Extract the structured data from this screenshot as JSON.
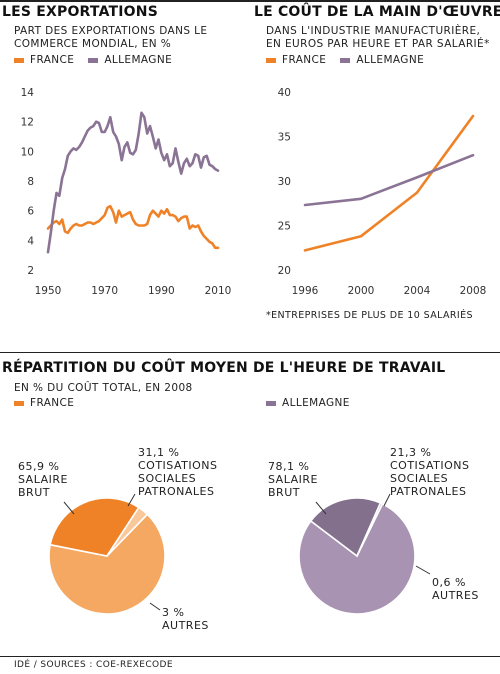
{
  "header_left": {
    "title": "LES EXPORTATIONS",
    "subtitle": "PART DES EXPORTATIONS DANS LE COMMERCE MONDIAL, EN %"
  },
  "header_right": {
    "title": "LE COÛT DE LA MAIN D'ŒUVRE",
    "subtitle": "DANS L'INDUSTRIE MANUFACTURIÈRE, EN EUROS PAR HEURE ET PAR SALARIÉ*"
  },
  "legend": {
    "france": "FRANCE",
    "allemagne": "ALLEMAGNE"
  },
  "colors": {
    "france": "#ef8227",
    "allemagne": "#8a7394",
    "france_light": "#f5a862",
    "allemagne_light": "#a893b2"
  },
  "footnote": "*ENTREPRISES DE PLUS DE 10 SALARIÉS",
  "section2": {
    "title": "RÉPARTITION DU COÛT MOYEN DE L'HEURE DE TRAVAIL",
    "subtitle": "EN % DU COÛT TOTAL, EN 2008"
  },
  "pie_labels": {
    "france": {
      "salaire_value": "65,9 %",
      "salaire_text": "SALAIRE BRUT",
      "cotis_value": "31,1 %",
      "cotis_text": "COTISATIONS SOCIALES PATRONALES",
      "autres_value": "3 %",
      "autres_text": "AUTRES"
    },
    "allemagne": {
      "salaire_value": "78,1 %",
      "salaire_text": "SALAIRE BRUT",
      "cotis_value": "21,3 %",
      "cotis_text": "COTISATIONS SOCIALES PATRONALES",
      "autres_value": "0,6 %",
      "autres_text": "AUTRES"
    }
  },
  "source": "IDÉ / SOURCES : COE-REXECODE",
  "chart_data": [
    {
      "type": "line",
      "title": "LES EXPORTATIONS",
      "subtitle": "PART DES EXPORTATIONS DANS LE COMMERCE MONDIAL, EN %",
      "xlim": [
        1950,
        2010
      ],
      "ylim": [
        2,
        14
      ],
      "xticks": [
        1950,
        1970,
        1990,
        2010
      ],
      "yticks": [
        2,
        4,
        6,
        8,
        10,
        12,
        14
      ],
      "series": [
        {
          "name": "FRANCE",
          "color": "#ef8227",
          "x": [
            1950,
            1951,
            1952,
            1953,
            1954,
            1955,
            1956,
            1957,
            1958,
            1959,
            1960,
            1961,
            1962,
            1963,
            1964,
            1965,
            1966,
            1967,
            1968,
            1969,
            1970,
            1971,
            1972,
            1973,
            1974,
            1975,
            1976,
            1977,
            1978,
            1979,
            1980,
            1981,
            1982,
            1983,
            1984,
            1985,
            1986,
            1987,
            1988,
            1989,
            1990,
            1991,
            1992,
            1993,
            1994,
            1995,
            1996,
            1997,
            1998,
            1999,
            2000,
            2001,
            2002,
            2003,
            2004,
            2005,
            2006,
            2007,
            2008,
            2009,
            2010
          ],
          "y": [
            4.8,
            5.0,
            5.2,
            5.3,
            5.1,
            5.4,
            4.6,
            4.5,
            4.8,
            5.0,
            5.1,
            5.0,
            5.0,
            5.1,
            5.2,
            5.2,
            5.1,
            5.2,
            5.3,
            5.5,
            5.7,
            6.2,
            6.3,
            5.9,
            5.2,
            6.0,
            5.6,
            5.7,
            5.8,
            5.9,
            5.4,
            5.1,
            5.0,
            5.0,
            5.0,
            5.1,
            5.7,
            6.0,
            5.8,
            5.6,
            6.0,
            5.8,
            6.1,
            5.7,
            5.7,
            5.6,
            5.3,
            5.5,
            5.6,
            5.6,
            4.8,
            5.0,
            4.9,
            5.0,
            4.6,
            4.3,
            4.1,
            3.9,
            3.8,
            3.5,
            3.5
          ]
        },
        {
          "name": "ALLEMAGNE",
          "color": "#8a7394",
          "x": [
            1950,
            1951,
            1952,
            1953,
            1954,
            1955,
            1956,
            1957,
            1958,
            1959,
            1960,
            1961,
            1962,
            1963,
            1964,
            1965,
            1966,
            1967,
            1968,
            1969,
            1970,
            1971,
            1972,
            1973,
            1974,
            1975,
            1976,
            1977,
            1978,
            1979,
            1980,
            1981,
            1982,
            1983,
            1984,
            1985,
            1986,
            1987,
            1988,
            1989,
            1990,
            1991,
            1992,
            1993,
            1994,
            1995,
            1996,
            1997,
            1998,
            1999,
            2000,
            2001,
            2002,
            2003,
            2004,
            2005,
            2006,
            2007,
            2008,
            2009,
            2010
          ],
          "y": [
            3.2,
            4.5,
            6.0,
            7.2,
            7.0,
            8.2,
            8.8,
            9.7,
            10.0,
            10.2,
            10.1,
            10.3,
            10.6,
            11.0,
            11.4,
            11.6,
            11.7,
            12.0,
            11.9,
            11.3,
            11.3,
            11.7,
            12.3,
            11.3,
            11.0,
            10.5,
            9.4,
            10.3,
            10.6,
            9.9,
            9.8,
            10.1,
            11.2,
            12.6,
            12.3,
            11.2,
            11.7,
            11.0,
            10.2,
            10.8,
            9.9,
            9.4,
            9.8,
            9.0,
            9.2,
            10.2,
            9.3,
            8.5,
            9.2,
            9.5,
            9.0,
            9.2,
            9.8,
            9.7,
            8.9,
            9.6,
            9.7,
            9.1,
            9.0,
            8.8,
            8.7
          ]
        }
      ]
    },
    {
      "type": "line",
      "title": "LE COÛT DE LA MAIN D'ŒUVRE",
      "subtitle": "DANS L'INDUSTRIE MANUFACTURIÈRE, EN EUROS PAR HEURE ET PAR SALARIÉ*",
      "xlim": [
        1996,
        2008
      ],
      "ylim": [
        20,
        40
      ],
      "xticks": [
        1996,
        2000,
        2004,
        2008
      ],
      "yticks": [
        20,
        25,
        30,
        35,
        40
      ],
      "series": [
        {
          "name": "FRANCE",
          "color": "#ef8227",
          "x": [
            1996,
            2000,
            2004,
            2008
          ],
          "y": [
            22.2,
            23.8,
            28.7,
            37.3
          ]
        },
        {
          "name": "ALLEMAGNE",
          "color": "#8a7394",
          "x": [
            1996,
            2000,
            2004,
            2008
          ],
          "y": [
            27.3,
            28.0,
            30.4,
            32.9
          ]
        }
      ]
    },
    {
      "type": "pie",
      "title": "RÉPARTITION DU COÛT MOYEN DE L'HEURE DE TRAVAIL",
      "subtitle": "EN % DU COÛT TOTAL, EN 2008",
      "name": "FRANCE",
      "labels": [
        "SALAIRE BRUT",
        "COTISATIONS SOCIALES PATRONALES",
        "AUTRES"
      ],
      "values": [
        65.9,
        31.1,
        3.0
      ],
      "colors": [
        "#f5a862",
        "#ef8227",
        "#f8c79a"
      ]
    },
    {
      "type": "pie",
      "title": "RÉPARTITION DU COÛT MOYEN DE L'HEURE DE TRAVAIL",
      "subtitle": "EN % DU COÛT TOTAL, EN 2008",
      "name": "ALLEMAGNE",
      "labels": [
        "SALAIRE BRUT",
        "COTISATIONS SOCIALES PATRONALES",
        "AUTRES"
      ],
      "values": [
        78.1,
        21.3,
        0.6
      ],
      "colors": [
        "#a893b2",
        "#82708c",
        "#c8bccf"
      ]
    }
  ]
}
